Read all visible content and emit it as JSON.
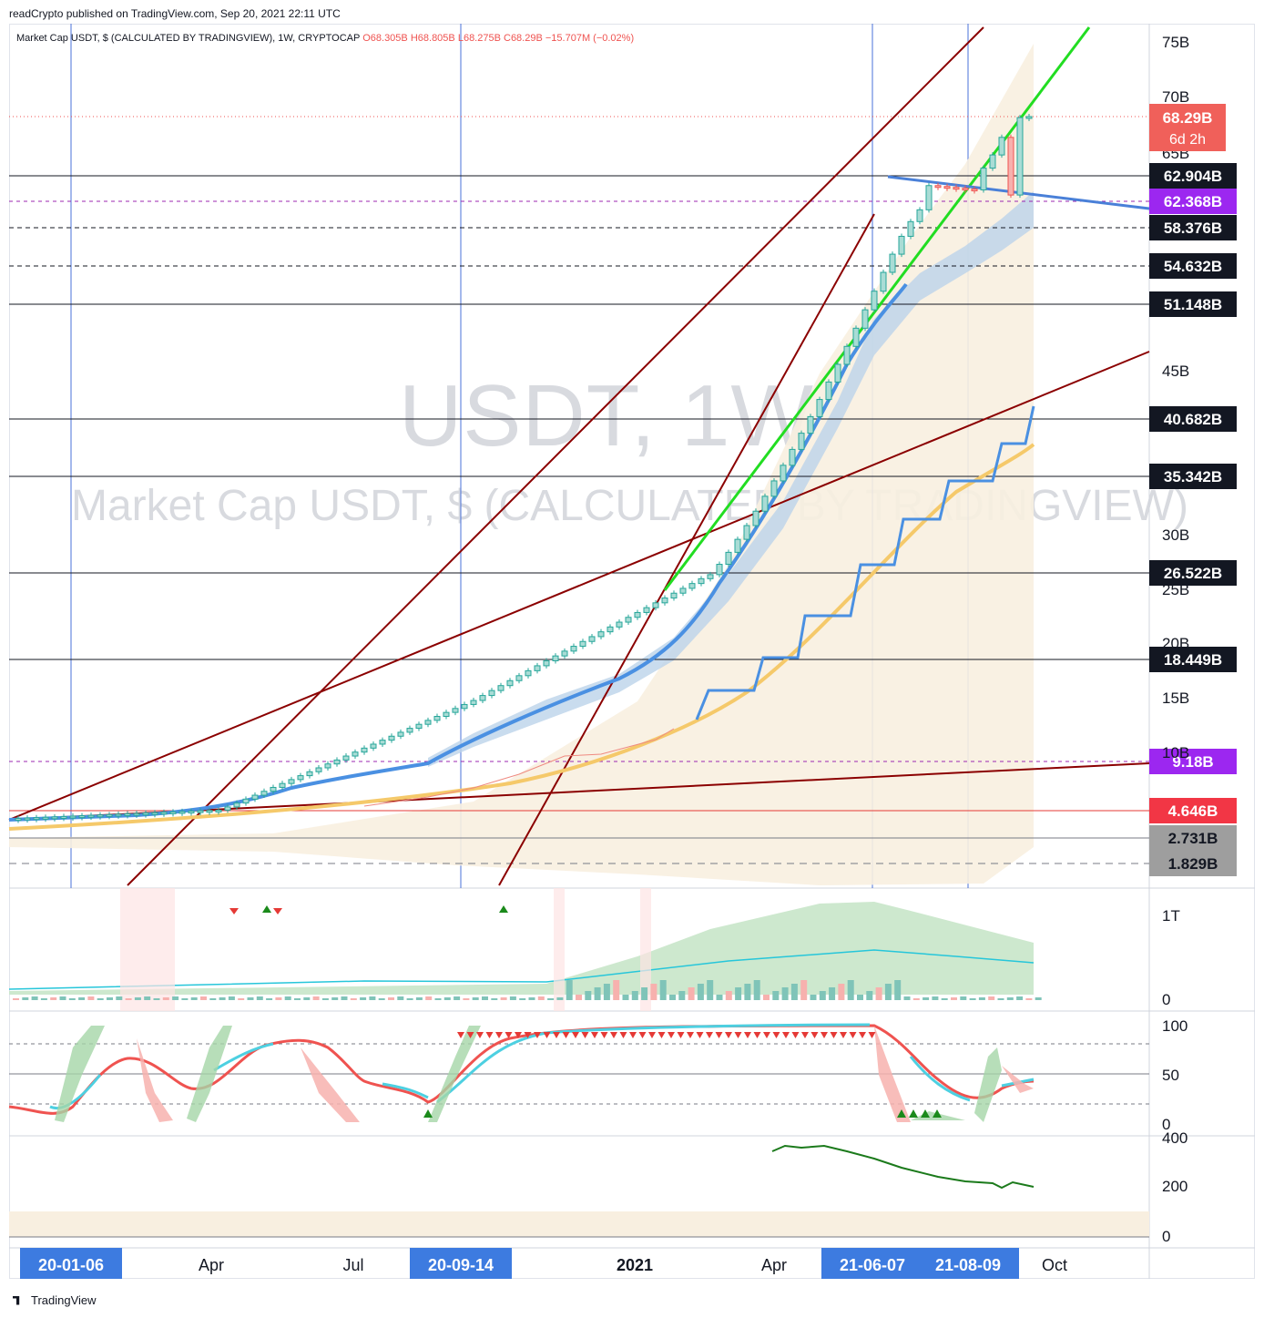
{
  "header": {
    "published": "readCrypto published on TradingView.com, Sep 20, 2021 22:11 UTC"
  },
  "legend": {
    "symbol": "Market Cap USDT, $ (CALCULATED BY TRADINGVIEW), 1W, CRYPTOCAP",
    "open": "O68.305B",
    "high": "H68.805B",
    "low": "L68.275B",
    "close": "C68.29B",
    "change": "−15.707M (−0.02%)"
  },
  "watermark": {
    "line1": "USDT, 1W",
    "line2": "Market Cap USDT, $ (CALCULATED BY TRADINGVIEW)"
  },
  "footer": {
    "brand": "TradingView"
  },
  "colors": {
    "up": "#26a69a",
    "down": "#ef5350",
    "trend": "#8b0000",
    "green_line": "#22dd22",
    "blue_line": "#4a90e2",
    "orange_line": "#f5c96a",
    "purple": "#9c27b0"
  },
  "chart_data": {
    "type": "candlestick",
    "price_axis": {
      "labels": [
        "75B",
        "70B",
        "65B",
        "45B",
        "30B",
        "25B",
        "20B",
        "15B",
        "10B"
      ]
    },
    "time_axis": {
      "labels": [
        "20-01-06",
        "Apr",
        "Jul",
        "20-09-14",
        "2021",
        "Apr",
        "21-06-07",
        "21-08-09",
        "Oct"
      ],
      "highlighted": [
        "20-01-06",
        "20-09-14",
        "21-06-07",
        "21-08-09"
      ]
    },
    "current_price": {
      "value": "68.29B",
      "countdown": "6d 2h"
    },
    "levels": [
      {
        "label": "62.904B",
        "style": "solid"
      },
      {
        "label": "62.368B",
        "style": "purple"
      },
      {
        "label": "58.376B",
        "style": "dashed"
      },
      {
        "label": "54.632B",
        "style": "dashed"
      },
      {
        "label": "51.148B",
        "style": "solid"
      },
      {
        "label": "40.682B",
        "style": "solid"
      },
      {
        "label": "35.342B",
        "style": "solid"
      },
      {
        "label": "26.522B",
        "style": "solid"
      },
      {
        "label": "18.449B",
        "style": "solid"
      },
      {
        "label": "9.18B",
        "style": "purple"
      },
      {
        "label": "4.646B",
        "style": "red"
      },
      {
        "label": "2.731B",
        "style": "gray"
      },
      {
        "label": "1.829B",
        "style": "gray"
      }
    ],
    "volume_axis": {
      "labels": [
        "1T",
        "0"
      ]
    },
    "osc_axis": {
      "labels": [
        "100",
        "50",
        "0"
      ]
    },
    "osc2_axis": {
      "labels": [
        "400",
        "200",
        "0"
      ]
    }
  }
}
